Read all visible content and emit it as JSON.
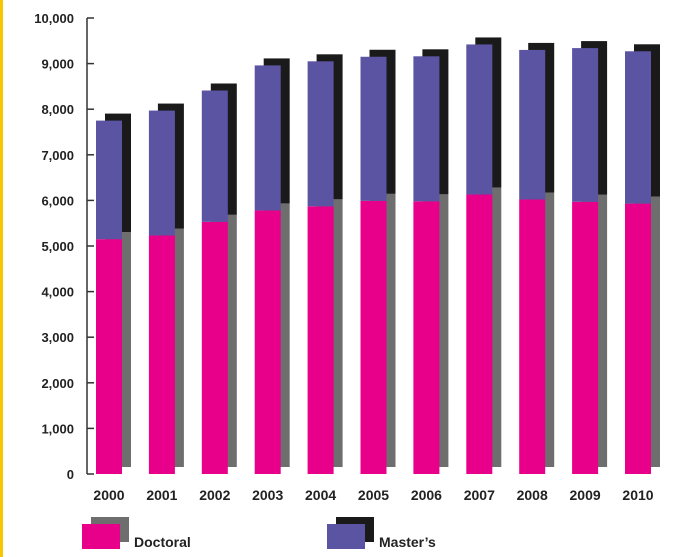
{
  "colors": {
    "doctoral": "#e8008a",
    "masters": "#5b54a3",
    "doctoral_shadow": "#6e6e6e",
    "masters_shadow": "#1a1a1a",
    "axis": "#333333",
    "accent": "#f5c800"
  },
  "chart_data": {
    "type": "bar",
    "stacked": true,
    "categories": [
      "2000",
      "2001",
      "2002",
      "2003",
      "2004",
      "2005",
      "2006",
      "2007",
      "2008",
      "2009",
      "2010"
    ],
    "series": [
      {
        "name": "Doctoral",
        "values": [
          5150,
          5230,
          5530,
          5780,
          5870,
          5990,
          5980,
          6130,
          6020,
          5970,
          5930
        ]
      },
      {
        "name": "Master’s",
        "values": [
          2600,
          2740,
          2880,
          3180,
          3180,
          3160,
          3180,
          3290,
          3280,
          3370,
          3340
        ]
      }
    ],
    "title": "",
    "xlabel": "",
    "ylabel": "",
    "ylim": [
      0,
      10000
    ],
    "yticks": [
      0,
      1000,
      2000,
      3000,
      4000,
      5000,
      6000,
      7000,
      8000,
      9000,
      10000
    ],
    "ytick_labels": [
      "0",
      "1,000",
      "2,000",
      "3,000",
      "4,000",
      "5,000",
      "6,000",
      "7,000",
      "8,000",
      "9,000",
      "10,000"
    ],
    "grid": false,
    "legend": {
      "position": "bottom-left",
      "entries": [
        "Doctoral",
        "Master’s"
      ]
    }
  }
}
